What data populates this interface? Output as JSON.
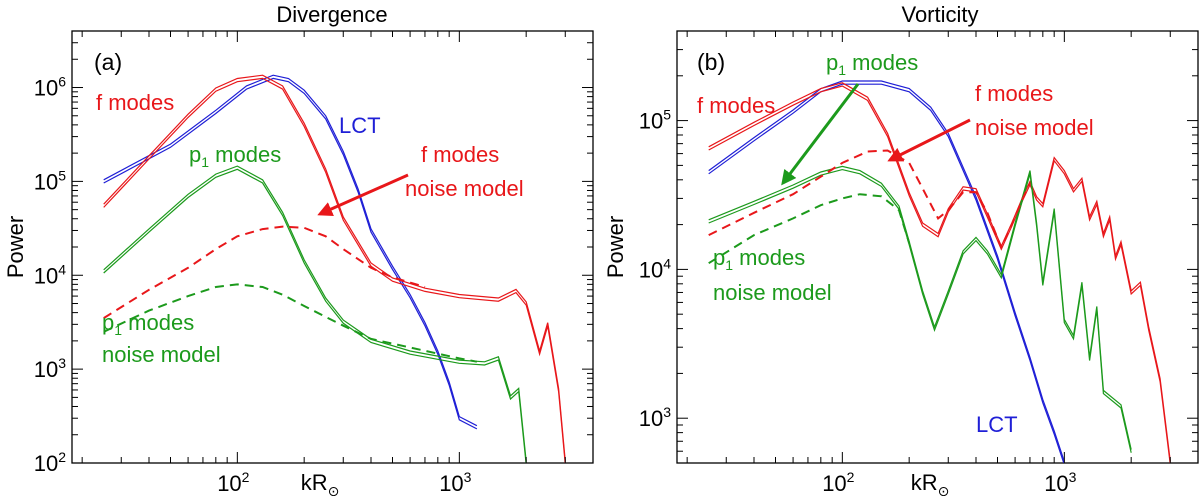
{
  "colors": {
    "f": "#e8171a",
    "p1": "#1c9a1c",
    "lct": "#1f1fd6",
    "axis": "#000000"
  },
  "chart_data": [
    {
      "type": "line",
      "title": "Divergence",
      "panel_label": "(a)",
      "xlabel": "kR",
      "xlabel_sub": "⊙",
      "ylabel": "Power",
      "xscale": "log",
      "yscale": "log",
      "xlim": [
        18,
        4000
      ],
      "ylim": [
        100,
        4000000
      ],
      "xticks": [
        {
          "v": 100,
          "base": "10",
          "exp": "2"
        },
        {
          "v": 1000,
          "base": "10",
          "exp": "3"
        }
      ],
      "yticks": [
        {
          "v": 100,
          "base": "10",
          "exp": "2"
        },
        {
          "v": 1000,
          "base": "10",
          "exp": "3"
        },
        {
          "v": 10000,
          "base": "10",
          "exp": "4"
        },
        {
          "v": 100000,
          "base": "10",
          "exp": "5"
        },
        {
          "v": 1000000,
          "base": "10",
          "exp": "6"
        }
      ],
      "series": [
        {
          "name": "LCT",
          "color": "lct",
          "style": "double",
          "x": [
            25,
            50,
            80,
            110,
            145,
            170,
            200,
            250,
            300,
            350,
            400,
            500,
            600,
            700,
            800,
            900,
            1000,
            1200
          ],
          "y": [
            100000,
            240000,
            550000,
            1000000,
            1300000,
            1200000,
            900000,
            480000,
            200000,
            80000,
            30000,
            12000,
            6000,
            3000,
            1500,
            700,
            300,
            240
          ]
        },
        {
          "name": "f modes",
          "color": "f",
          "style": "double",
          "x": [
            25,
            40,
            60,
            80,
            100,
            130,
            160,
            200,
            250,
            300,
            400,
            500,
            700,
            1000,
            1500,
            1800,
            2000,
            2300,
            2500,
            2800,
            3000
          ],
          "y": [
            55000,
            180000,
            500000,
            950000,
            1200000,
            1300000,
            1000000,
            400000,
            130000,
            40000,
            13000,
            9000,
            7000,
            6000,
            5500,
            6800,
            5000,
            1500,
            3000,
            600,
            100
          ]
        },
        {
          "name": "p1 modes",
          "color": "p1",
          "style": "double",
          "x": [
            25,
            40,
            60,
            80,
            100,
            130,
            160,
            200,
            250,
            300,
            400,
            600,
            1000,
            1300,
            1500,
            1700,
            1850,
            2000
          ],
          "y": [
            11000,
            30000,
            70000,
            115000,
            140000,
            100000,
            45000,
            14000,
            5500,
            3200,
            2000,
            1500,
            1200,
            1150,
            1300,
            500,
            600,
            100
          ]
        },
        {
          "name": "f modes noise model",
          "color": "f",
          "style": "dashed",
          "x": [
            25,
            40,
            60,
            80,
            100,
            130,
            160,
            200,
            250,
            300,
            400,
            500,
            700
          ],
          "y": [
            3500,
            7000,
            12000,
            19000,
            26000,
            31000,
            33000,
            32000,
            26000,
            19000,
            12000,
            9500,
            7500
          ]
        },
        {
          "name": "p1 modes noise model",
          "color": "p1",
          "style": "dashed",
          "x": [
            25,
            40,
            60,
            80,
            100,
            130,
            160,
            200,
            250,
            300,
            400,
            600,
            1000,
            1200
          ],
          "y": [
            2500,
            4200,
            6000,
            7500,
            8000,
            7500,
            6200,
            4700,
            3600,
            2900,
            2100,
            1700,
            1300,
            1200
          ]
        }
      ],
      "annotations": [
        {
          "text": "f modes",
          "color": "f"
        },
        {
          "text": "LCT",
          "color": "lct"
        },
        {
          "text": "p",
          "sub": "1",
          "suffix": " modes",
          "color": "p1"
        },
        {
          "text": "f modes",
          "color": "f"
        },
        {
          "text": "noise model",
          "color": "f"
        },
        {
          "text": "p",
          "sub": "1",
          "suffix": " modes",
          "color": "p1"
        },
        {
          "text": "noise model",
          "color": "p1"
        }
      ]
    },
    {
      "type": "line",
      "title": "Vorticity",
      "panel_label": "(b)",
      "xlabel": "kR",
      "xlabel_sub": "⊙",
      "ylabel": "Power",
      "xscale": "log",
      "yscale": "log",
      "xlim": [
        18,
        4000
      ],
      "ylim": [
        500,
        400000
      ],
      "xticks": [
        {
          "v": 100,
          "base": "10",
          "exp": "2"
        },
        {
          "v": 1000,
          "base": "10",
          "exp": "3"
        }
      ],
      "yticks": [
        {
          "v": 1000,
          "base": "10",
          "exp": "3"
        },
        {
          "v": 10000,
          "base": "10",
          "exp": "4"
        },
        {
          "v": 100000,
          "base": "10",
          "exp": "5"
        }
      ],
      "series": [
        {
          "name": "LCT",
          "color": "lct",
          "style": "double",
          "x": [
            25,
            40,
            60,
            80,
            100,
            150,
            200,
            250,
            300,
            400,
            500,
            600,
            700,
            800,
            900,
            1000
          ],
          "y": [
            45000,
            75000,
            115000,
            160000,
            180000,
            180000,
            160000,
            120000,
            80000,
            30000,
            12000,
            5000,
            2500,
            1300,
            800,
            500
          ]
        },
        {
          "name": "f modes",
          "color": "f",
          "style": "double",
          "x": [
            25,
            40,
            60,
            80,
            100,
            130,
            160,
            200,
            230,
            270,
            300,
            350,
            400,
            450,
            520,
            580,
            650,
            700,
            750,
            800,
            900,
            1000,
            1100,
            1200,
            1300,
            1400,
            1500,
            1600,
            1700,
            1800,
            2000,
            2200,
            2400,
            2700,
            3000
          ],
          "y": [
            65000,
            95000,
            130000,
            160000,
            175000,
            140000,
            80000,
            32000,
            20000,
            17000,
            25000,
            35000,
            34000,
            23000,
            14000,
            20000,
            30000,
            38000,
            30000,
            27000,
            55000,
            45000,
            34000,
            40000,
            22000,
            28000,
            17000,
            22000,
            12000,
            15000,
            7000,
            8000,
            4000,
            1800,
            500
          ]
        },
        {
          "name": "p1 modes",
          "color": "p1",
          "style": "double",
          "x": [
            25,
            40,
            60,
            80,
            100,
            120,
            150,
            180,
            200,
            230,
            260,
            300,
            350,
            400,
            450,
            520,
            600,
            700,
            750,
            800,
            900,
            1000,
            1100,
            1200,
            1300,
            1400,
            1500,
            1800,
            2000
          ],
          "y": [
            21000,
            28000,
            36000,
            44000,
            48000,
            45000,
            37000,
            26000,
            15000,
            7000,
            4000,
            7000,
            13000,
            16000,
            13000,
            9000,
            20000,
            45000,
            20000,
            8000,
            25000,
            4500,
            3500,
            8000,
            2500,
            5500,
            1500,
            1200,
            600
          ]
        },
        {
          "name": "f modes noise model",
          "color": "f",
          "style": "dashed",
          "x": [
            25,
            40,
            60,
            80,
            100,
            130,
            160,
            200,
            230,
            270,
            300,
            350,
            400,
            450,
            520,
            580,
            650,
            700
          ],
          "y": [
            17000,
            24000,
            32000,
            42000,
            52000,
            62000,
            63000,
            52000,
            35000,
            22000,
            25000,
            33000,
            33000,
            24000,
            14000,
            20000,
            30000,
            38000
          ]
        },
        {
          "name": "p1 modes noise model",
          "color": "p1",
          "style": "dashed",
          "x": [
            25,
            40,
            60,
            80,
            100,
            120,
            150,
            180,
            200
          ],
          "y": [
            11000,
            17000,
            22000,
            27000,
            30000,
            32000,
            31000,
            25000,
            15000
          ]
        }
      ],
      "annotations": [
        {
          "text": "p",
          "sub": "1",
          "suffix": " modes",
          "color": "p1"
        },
        {
          "text": "f modes",
          "color": "f"
        },
        {
          "text": "f modes",
          "color": "f"
        },
        {
          "text": "noise model",
          "color": "f"
        },
        {
          "text": "p",
          "sub": "1",
          "suffix": " modes",
          "color": "p1"
        },
        {
          "text": "noise model",
          "color": "p1"
        },
        {
          "text": "LCT",
          "color": "lct"
        }
      ]
    }
  ]
}
